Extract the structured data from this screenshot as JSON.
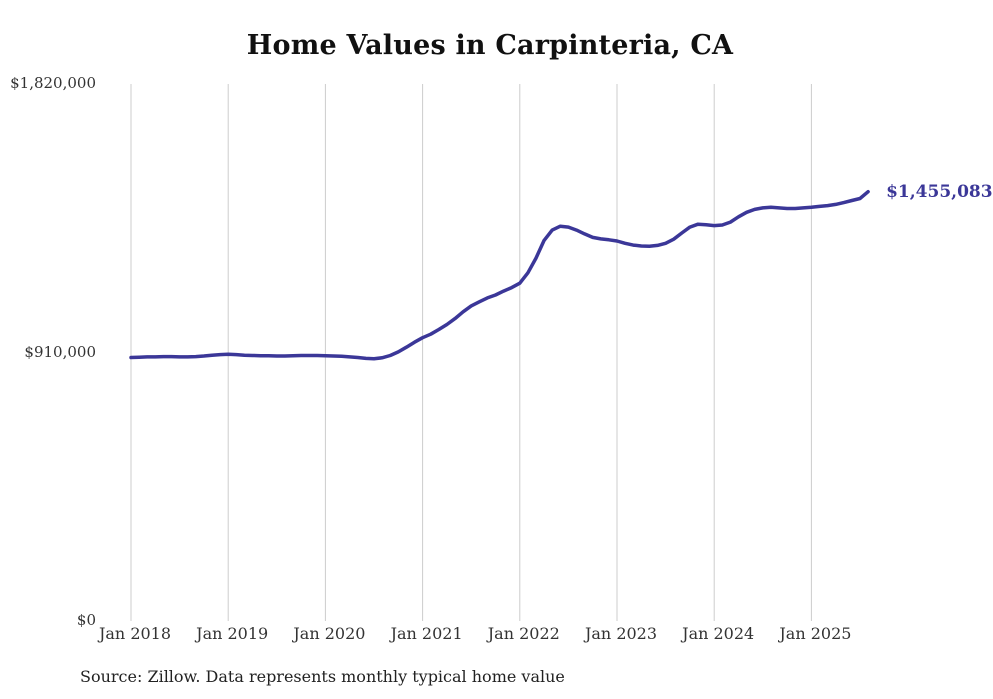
{
  "title": "Home Values in Carpinteria, CA",
  "source_note": "Source: Zillow. Data represents monthly typical home value",
  "end_label": "$1,455,083",
  "colors": {
    "line": "#3b3798",
    "grid": "#cccccc",
    "text": "#333333",
    "title": "#111111"
  },
  "chart_data": {
    "type": "line",
    "title": "Home Values in Carpinteria, CA",
    "xlabel": "",
    "ylabel": "",
    "ylim": [
      0,
      1820000
    ],
    "grid": "vertical-only",
    "legend": "none",
    "y_tick_labels": [
      "$1,820,000",
      "$910,000",
      "$0"
    ],
    "y_tick_values": [
      1820000,
      910000,
      0
    ],
    "x_tick_labels": [
      "Jan 2018",
      "Jan 2019",
      "Jan 2020",
      "Jan 2021",
      "Jan 2022",
      "Jan 2023",
      "Jan 2024",
      "Jan 2025"
    ],
    "x_start_month": "2018-01",
    "x_end_month": "2025-08",
    "annotation": {
      "text": "$1,455,083",
      "at": "last-point"
    },
    "series": [
      {
        "name": "Typical home value",
        "values": [
          893000,
          894000,
          895000,
          895000,
          896000,
          896000,
          895000,
          895000,
          896000,
          898000,
          901000,
          903000,
          904000,
          903000,
          901000,
          900000,
          899000,
          899000,
          898000,
          898000,
          899000,
          900000,
          900000,
          900000,
          899000,
          898000,
          897000,
          895000,
          893000,
          890000,
          889000,
          892000,
          900000,
          912000,
          928000,
          945000,
          960000,
          972000,
          988000,
          1005000,
          1025000,
          1048000,
          1068000,
          1082000,
          1095000,
          1105000,
          1118000,
          1130000,
          1145000,
          1180000,
          1230000,
          1290000,
          1325000,
          1338000,
          1335000,
          1325000,
          1312000,
          1300000,
          1295000,
          1292000,
          1288000,
          1280000,
          1274000,
          1271000,
          1270000,
          1273000,
          1280000,
          1294000,
          1315000,
          1335000,
          1345000,
          1343000,
          1340000,
          1342000,
          1352000,
          1370000,
          1385000,
          1395000,
          1400000,
          1402000,
          1400000,
          1398000,
          1398000,
          1400000,
          1402000,
          1405000,
          1408000,
          1412000,
          1418000,
          1425000,
          1432000,
          1455083
        ]
      }
    ]
  }
}
